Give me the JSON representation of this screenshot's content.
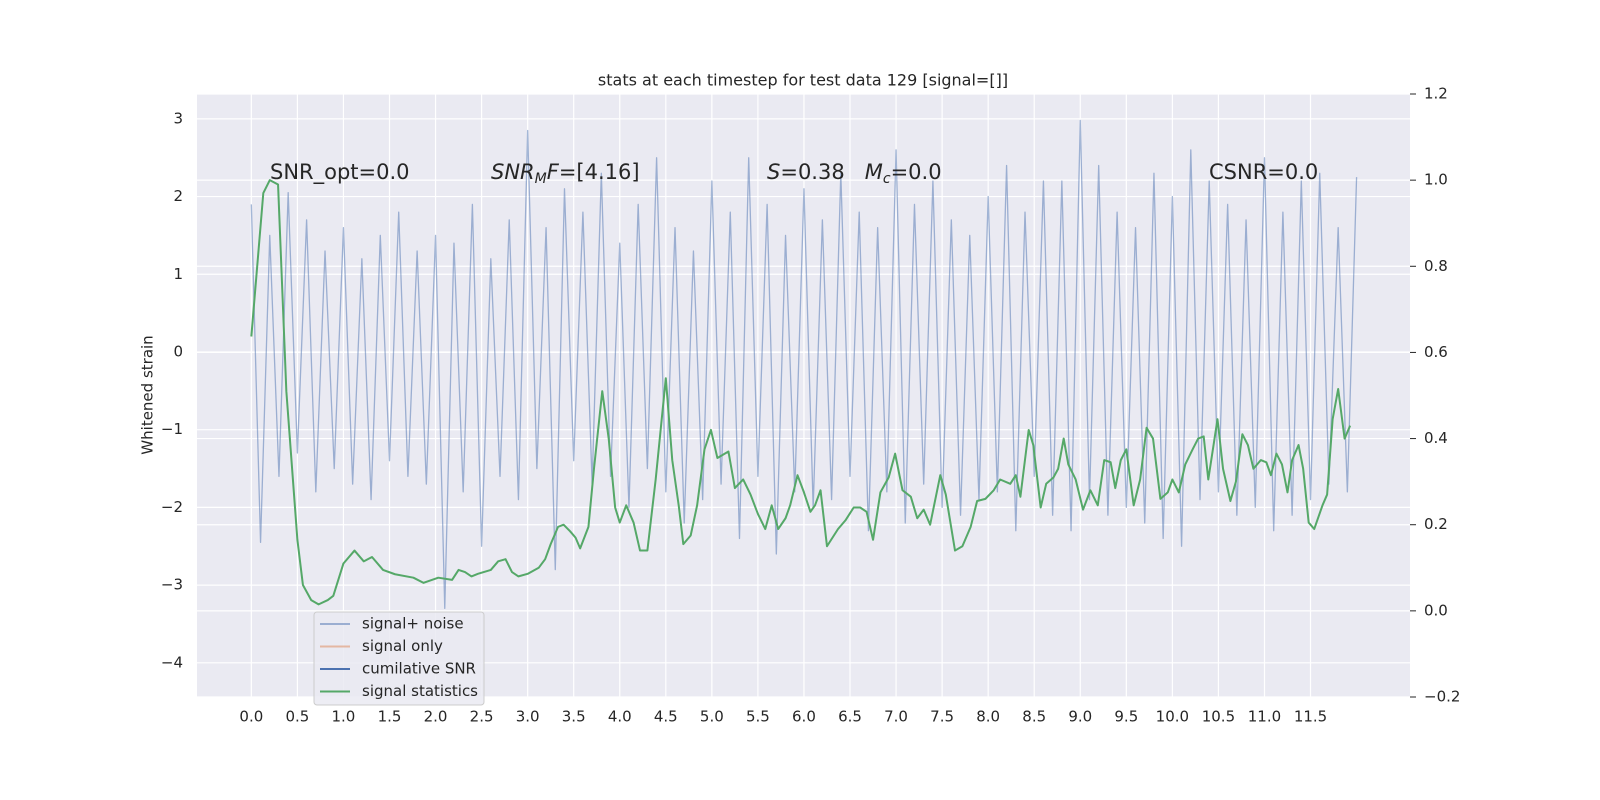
{
  "chart_data": {
    "type": "line",
    "title": "stats at each timestep for test data 129 [signal=[]]",
    "y_label": "Whitened strain",
    "xlim": [
      -0.59,
      12.58
    ],
    "ylim": [
      -4.44,
      3.32
    ],
    "y2lim": [
      -0.2,
      1.2
    ],
    "xticks": [
      {
        "value": 0,
        "label": "0.0"
      },
      0.5,
      {
        "value": 1,
        "label": "1.0"
      },
      1.5,
      {
        "value": 2,
        "label": "2.0"
      },
      2.5,
      {
        "value": 3,
        "label": "3.0"
      },
      3.5,
      {
        "value": 4,
        "label": "4.0"
      },
      4.5,
      {
        "value": 5,
        "label": "5.0"
      },
      5.5,
      {
        "value": 6,
        "label": "6.0"
      },
      6.5,
      {
        "value": 7,
        "label": "7.0"
      },
      7.5,
      {
        "value": 8,
        "label": "8.0"
      },
      8.5,
      {
        "value": 9,
        "label": "9.0"
      },
      9.5,
      {
        "value": 10,
        "label": "10.0"
      },
      10.5,
      {
        "value": 11,
        "label": "11.0"
      },
      11.5
    ],
    "yticks": [
      {
        "value": -4,
        "label": "−4"
      },
      {
        "value": -3,
        "label": "−3"
      },
      {
        "value": -2,
        "label": "−2"
      },
      {
        "value": -1,
        "label": "−1"
      },
      0,
      1,
      2,
      3
    ],
    "y2ticks": [
      {
        "value": -0.2,
        "label": "−0.2"
      },
      {
        "value": 0,
        "label": "0.0"
      },
      0.2,
      0.4,
      0.6,
      0.8,
      {
        "value": 1,
        "label": "1.0"
      },
      1.2
    ],
    "grid": true,
    "legend": "lower left",
    "series": [
      {
        "name": "signal+ noise",
        "color": "#4c72b0",
        "opacity": 0.5,
        "axis": "y",
        "x": [
          0,
          0.1,
          0.2,
          0.3,
          0.4,
          0.5,
          0.6,
          0.7,
          0.8,
          0.9,
          1,
          1.1,
          1.2,
          1.3,
          1.4,
          1.5,
          1.6,
          1.7,
          1.8,
          1.9,
          2,
          2.1,
          2.2,
          2.3,
          2.4,
          2.5,
          2.6,
          2.7,
          2.8,
          2.9,
          3,
          3.1,
          3.2,
          3.3,
          3.4,
          3.5,
          3.6,
          3.7,
          3.8,
          3.9,
          4,
          4.1,
          4.2,
          4.3,
          4.4,
          4.5,
          4.6,
          4.7,
          4.8,
          4.9,
          5,
          5.1,
          5.2,
          5.3,
          5.4,
          5.5,
          5.6,
          5.7,
          5.8,
          5.9,
          6,
          6.1,
          6.2,
          6.3,
          6.4,
          6.5,
          6.6,
          6.7,
          6.8,
          6.9,
          7,
          7.1,
          7.2,
          7.3,
          7.4,
          7.5,
          7.6,
          7.7,
          7.8,
          7.9,
          8,
          8.1,
          8.2,
          8.3,
          8.4,
          8.5,
          8.6,
          8.7,
          8.8,
          8.9,
          9,
          9.1,
          9.2,
          9.3,
          9.4,
          9.5,
          9.6,
          9.7,
          9.8,
          9.9,
          10,
          10.1,
          10.2,
          10.3,
          10.4,
          10.5,
          10.6,
          10.7,
          10.8,
          10.9,
          11,
          11.1,
          11.2,
          11.3,
          11.4,
          11.5,
          11.6,
          11.7,
          11.8,
          11.9,
          12
        ],
        "values": [
          1.9,
          -2.45,
          1.5,
          -1.6,
          2.05,
          -1.3,
          1.7,
          -1.8,
          1.3,
          -1.5,
          1.6,
          -1.7,
          1.2,
          -1.9,
          1.5,
          -1.4,
          1.8,
          -1.6,
          1.3,
          -1.7,
          1.5,
          -3.3,
          1.4,
          -1.8,
          1.9,
          -2.5,
          1.2,
          -1.6,
          1.7,
          -1.9,
          2.85,
          -1.5,
          1.6,
          -2.8,
          2.1,
          -1.4,
          1.8,
          -1.7,
          2.3,
          -1.6,
          1.4,
          -2.0,
          1.9,
          -1.5,
          2.5,
          -1.8,
          1.6,
          -2.2,
          1.3,
          -1.9,
          2.2,
          -1.7,
          1.8,
          -2.4,
          2.5,
          -1.6,
          1.9,
          -2.6,
          1.5,
          -1.8,
          2.1,
          -2.0,
          1.7,
          -1.9,
          2.3,
          -1.6,
          1.8,
          -2.3,
          1.6,
          -1.8,
          2.6,
          -2.2,
          1.9,
          -1.7,
          2.2,
          -2.0,
          1.7,
          -2.1,
          1.5,
          -1.9,
          2.0,
          -1.8,
          2.4,
          -2.3,
          1.8,
          -1.6,
          2.2,
          -2.1,
          2.2,
          -2.3,
          2.98,
          -1.9,
          2.4,
          -2.1,
          1.8,
          -2.0,
          1.6,
          -2.2,
          2.3,
          -2.4,
          2.0,
          -2.5,
          2.6,
          -1.9,
          2.2,
          -1.8,
          1.9,
          -2.1,
          1.7,
          -2.0,
          2.5,
          -2.3,
          1.8,
          -2.1,
          2.2,
          -1.9,
          2.3,
          -1.7,
          1.6,
          -1.8,
          2.25
        ]
      },
      {
        "name": "signal only",
        "color": "#dd8452",
        "opacity": 0.5
      },
      {
        "name": "cumilative SNR",
        "color": "#4c72b0",
        "opacity": 1
      },
      {
        "name": "signal statistics",
        "color": "#55a868",
        "opacity": 1,
        "axis": "y2",
        "x": [
          0,
          0.13,
          0.2,
          0.29,
          0.38,
          0.5,
          0.56,
          0.65,
          0.73,
          0.83,
          0.89,
          1,
          1.12,
          1.22,
          1.31,
          1.43,
          1.56,
          1.76,
          1.87,
          2.03,
          2.18,
          2.25,
          2.32,
          2.39,
          2.46,
          2.6,
          2.68,
          2.76,
          2.83,
          2.9,
          3,
          3.12,
          3.19,
          3.25,
          3.33,
          3.39,
          3.46,
          3.52,
          3.57,
          3.66,
          3.72,
          3.81,
          3.88,
          3.95,
          4,
          4.07,
          4.15,
          4.22,
          4.3,
          4.39,
          4.5,
          4.57,
          4.64,
          4.69,
          4.77,
          4.84,
          4.92,
          4.99,
          5.06,
          5.18,
          5.25,
          5.34,
          5.42,
          5.5,
          5.58,
          5.65,
          5.72,
          5.8,
          5.85,
          5.93,
          6,
          6.07,
          6.12,
          6.18,
          6.25,
          6.37,
          6.45,
          6.54,
          6.61,
          6.68,
          6.75,
          6.83,
          6.92,
          6.99,
          7.07,
          7.16,
          7.23,
          7.3,
          7.37,
          7.48,
          7.54,
          7.64,
          7.72,
          7.81,
          7.88,
          7.97,
          8.06,
          8.13,
          8.24,
          8.3,
          8.35,
          8.44,
          8.49,
          8.57,
          8.63,
          8.71,
          8.76,
          8.82,
          8.87,
          8.95,
          9.03,
          9.11,
          9.19,
          9.26,
          9.33,
          9.38,
          9.44,
          9.5,
          9.58,
          9.65,
          9.72,
          9.79,
          9.87,
          9.95,
          10,
          10.07,
          10.14,
          10.22,
          10.28,
          10.34,
          10.39,
          10.49,
          10.55,
          10.63,
          10.69,
          10.76,
          10.82,
          10.88,
          10.96,
          11.02,
          11.07,
          11.13,
          11.19,
          11.25,
          11.3,
          11.37,
          11.42,
          11.48,
          11.54,
          11.63,
          11.68,
          11.74,
          11.8,
          11.87,
          11.93
        ],
        "values": [
          0.637,
          0.97,
          1.0,
          0.99,
          0.51,
          0.165,
          0.06,
          0.025,
          0.015,
          0.025,
          0.035,
          0.11,
          0.14,
          0.115,
          0.125,
          0.095,
          0.085,
          0.077,
          0.065,
          0.077,
          0.072,
          0.095,
          0.09,
          0.08,
          0.086,
          0.095,
          0.115,
          0.12,
          0.09,
          0.08,
          0.086,
          0.1,
          0.12,
          0.155,
          0.195,
          0.2,
          0.185,
          0.17,
          0.145,
          0.195,
          0.33,
          0.51,
          0.4,
          0.24,
          0.205,
          0.245,
          0.205,
          0.14,
          0.14,
          0.305,
          0.54,
          0.35,
          0.245,
          0.155,
          0.175,
          0.245,
          0.375,
          0.42,
          0.355,
          0.37,
          0.285,
          0.305,
          0.27,
          0.225,
          0.19,
          0.245,
          0.19,
          0.215,
          0.245,
          0.315,
          0.275,
          0.23,
          0.245,
          0.28,
          0.15,
          0.19,
          0.21,
          0.24,
          0.24,
          0.23,
          0.165,
          0.275,
          0.31,
          0.365,
          0.28,
          0.265,
          0.215,
          0.235,
          0.2,
          0.315,
          0.27,
          0.14,
          0.15,
          0.195,
          0.255,
          0.26,
          0.28,
          0.305,
          0.295,
          0.315,
          0.265,
          0.42,
          0.385,
          0.24,
          0.295,
          0.31,
          0.33,
          0.4,
          0.34,
          0.305,
          0.235,
          0.28,
          0.245,
          0.35,
          0.345,
          0.285,
          0.35,
          0.375,
          0.245,
          0.305,
          0.425,
          0.4,
          0.26,
          0.275,
          0.305,
          0.275,
          0.34,
          0.375,
          0.4,
          0.405,
          0.305,
          0.445,
          0.33,
          0.255,
          0.3,
          0.41,
          0.385,
          0.33,
          0.35,
          0.345,
          0.315,
          0.365,
          0.34,
          0.275,
          0.35,
          0.385,
          0.33,
          0.205,
          0.19,
          0.245,
          0.27,
          0.445,
          0.515,
          0.4,
          0.43
        ]
      }
    ],
    "annotations": [
      {
        "parts": [
          {
            "text": "SNR_opt=0.0"
          }
        ]
      },
      {
        "parts": [
          {
            "text": "SNR",
            "style": "italic"
          },
          {
            "text": "M",
            "style": "italic-sub"
          },
          {
            "text": "F",
            "style": "italic"
          },
          {
            "text": "=[4.16]"
          }
        ]
      },
      {
        "parts": [
          {
            "text": "S",
            "style": "italic"
          },
          {
            "text": "=0.38   "
          },
          {
            "text": "M",
            "style": "italic"
          },
          {
            "text": "c",
            "style": "italic-sub"
          },
          {
            "text": "=0.0"
          }
        ]
      },
      {
        "parts": [
          {
            "text": "CSNR=0.0"
          }
        ]
      }
    ]
  }
}
